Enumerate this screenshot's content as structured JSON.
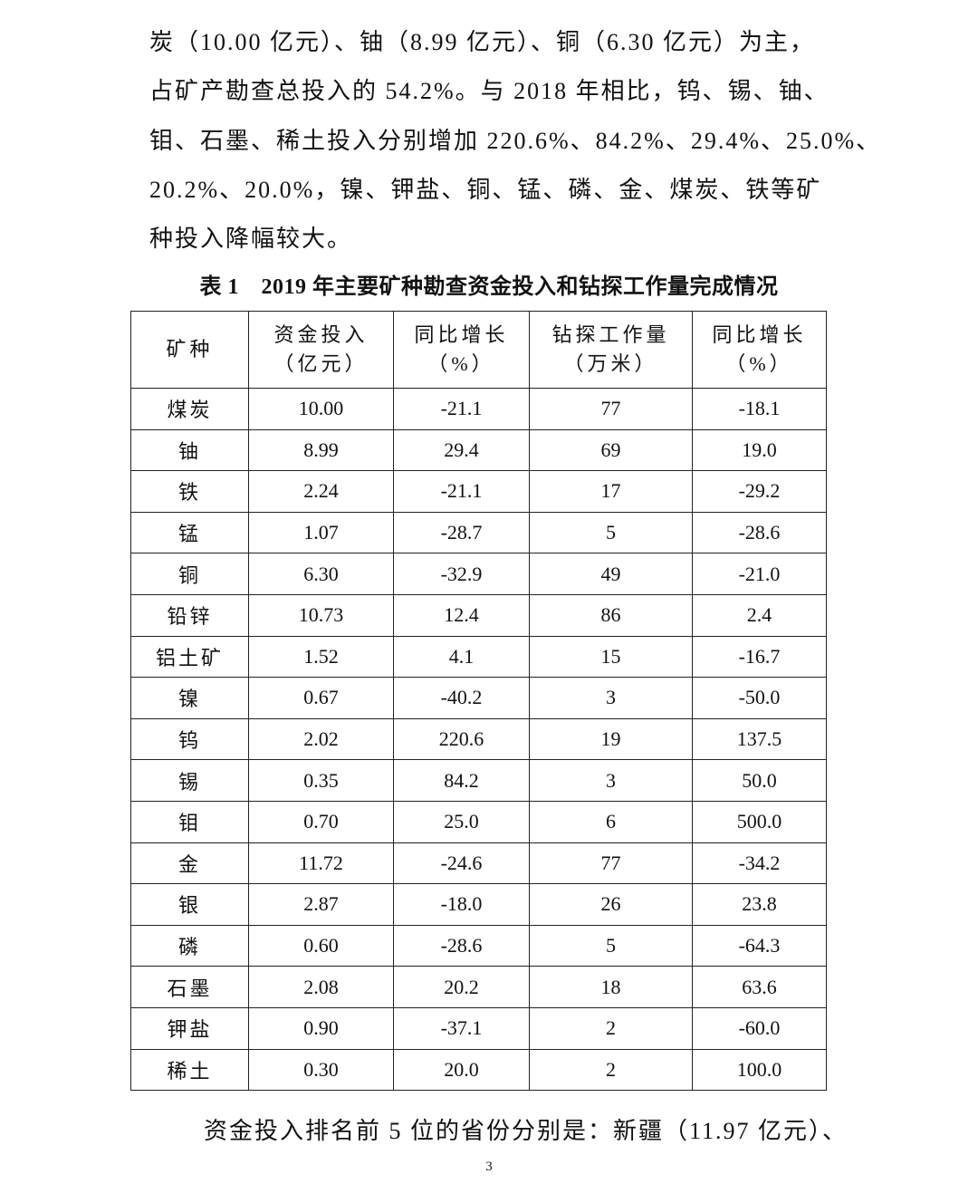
{
  "paragraph_top": [
    "炭（10.00 亿元）、铀（8.99 亿元）、铜（6.30 亿元）为主，",
    "占矿产勘查总投入的 54.2%。与 2018 年相比，钨、锡、铀、",
    "钼、石墨、稀土投入分别增加 220.6%、84.2%、29.4%、25.0%、",
    "20.2%、20.0%，镍、钾盐、铜、锰、磷、金、煤炭、铁等矿",
    "种投入降幅较大。"
  ],
  "table_caption": "表 1　2019 年主要矿种勘查资金投入和钻探工作量完成情况",
  "table": {
    "headers": [
      [
        "矿种",
        ""
      ],
      [
        "资金投入",
        "（亿元）"
      ],
      [
        "同比增长",
        "（%）"
      ],
      [
        "钻探工作量",
        "（万米）"
      ],
      [
        "同比增长",
        "（%）"
      ]
    ],
    "rows": [
      [
        "煤炭",
        "10.00",
        "-21.1",
        "77",
        "-18.1"
      ],
      [
        "铀",
        "8.99",
        "29.4",
        "69",
        "19.0"
      ],
      [
        "铁",
        "2.24",
        "-21.1",
        "17",
        "-29.2"
      ],
      [
        "锰",
        "1.07",
        "-28.7",
        "5",
        "-28.6"
      ],
      [
        "铜",
        "6.30",
        "-32.9",
        "49",
        "-21.0"
      ],
      [
        "铅锌",
        "10.73",
        "12.4",
        "86",
        "2.4"
      ],
      [
        "铝土矿",
        "1.52",
        "4.1",
        "15",
        "-16.7"
      ],
      [
        "镍",
        "0.67",
        "-40.2",
        "3",
        "-50.0"
      ],
      [
        "钨",
        "2.02",
        "220.6",
        "19",
        "137.5"
      ],
      [
        "锡",
        "0.35",
        "84.2",
        "3",
        "50.0"
      ],
      [
        "钼",
        "0.70",
        "25.0",
        "6",
        "500.0"
      ],
      [
        "金",
        "11.72",
        "-24.6",
        "77",
        "-34.2"
      ],
      [
        "银",
        "2.87",
        "-18.0",
        "26",
        "23.8"
      ],
      [
        "磷",
        "0.60",
        "-28.6",
        "5",
        "-64.3"
      ],
      [
        "石墨",
        "2.08",
        "20.2",
        "18",
        "63.6"
      ],
      [
        "钾盐",
        "0.90",
        "-37.1",
        "2",
        "-60.0"
      ],
      [
        "稀土",
        "0.30",
        "20.0",
        "2",
        "100.0"
      ]
    ]
  },
  "paragraph_bottom": "资金投入排名前 5 位的省份分别是：新疆（11.97 亿元）、",
  "page_number": "3"
}
